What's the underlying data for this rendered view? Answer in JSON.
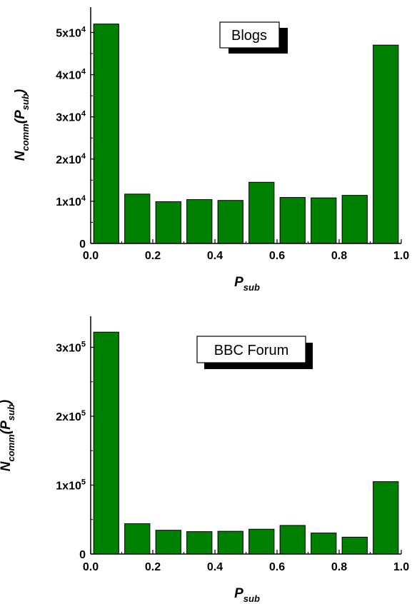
{
  "chart_data": [
    {
      "type": "bar",
      "x": [
        0.05,
        0.15,
        0.25,
        0.35,
        0.45,
        0.55,
        0.65,
        0.75,
        0.85,
        0.95
      ],
      "values": [
        52000,
        11700,
        9900,
        10400,
        10200,
        14500,
        10900,
        10800,
        11400,
        47000
      ],
      "xlim": [
        0,
        1
      ],
      "ylim": [
        0,
        56000
      ],
      "xticks": [
        "0.0",
        "0.2",
        "0.4",
        "0.6",
        "0.8",
        "1.0"
      ],
      "yticks": [
        {
          "value": 0,
          "mant": "0",
          "exp": ""
        },
        {
          "value": 10000,
          "mant": "1x10",
          "exp": "4"
        },
        {
          "value": 20000,
          "mant": "2x10",
          "exp": "4"
        },
        {
          "value": 30000,
          "mant": "3x10",
          "exp": "4"
        },
        {
          "value": 40000,
          "mant": "4x10",
          "exp": "4"
        },
        {
          "value": 50000,
          "mant": "5x10",
          "exp": "4"
        }
      ],
      "legend": "Blogs",
      "xlabel": {
        "main": "P",
        "sub": "sub"
      },
      "ylabel": {
        "main1": "N",
        "sub1": "comm",
        "main2": "(P",
        "sub2": "sub",
        "main3": ")"
      },
      "bar_color": "#008000",
      "grid": false
    },
    {
      "type": "bar",
      "x": [
        0.05,
        0.15,
        0.25,
        0.35,
        0.45,
        0.55,
        0.65,
        0.75,
        0.85,
        0.95
      ],
      "values": [
        322000,
        44000,
        34500,
        32500,
        33000,
        36000,
        41500,
        30500,
        24500,
        105000
      ],
      "xlim": [
        0,
        1
      ],
      "ylim": [
        0,
        345000
      ],
      "xticks": [
        "0.0",
        "0.2",
        "0.4",
        "0.6",
        "0.8",
        "1.0"
      ],
      "yticks": [
        {
          "value": 0,
          "mant": "0",
          "exp": ""
        },
        {
          "value": 100000,
          "mant": "1x10",
          "exp": "5"
        },
        {
          "value": 200000,
          "mant": "2x10",
          "exp": "5"
        },
        {
          "value": 300000,
          "mant": "3x10",
          "exp": "5"
        }
      ],
      "legend": "BBC Forum",
      "xlabel": {
        "main": "P",
        "sub": "sub"
      },
      "ylabel": {
        "main1": "N",
        "sub1": "comm",
        "main2": "(P",
        "sub2": "sub",
        "main3": ")"
      },
      "bar_color": "#008000",
      "grid": false
    }
  ]
}
